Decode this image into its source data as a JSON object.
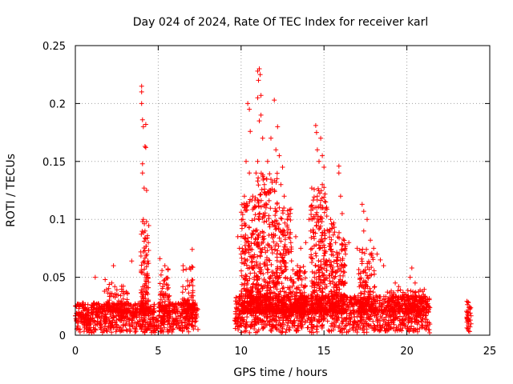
{
  "chart_data": {
    "type": "scatter",
    "title": "Day 024 of 2024, Rate Of TEC Index for receiver karl",
    "xlabel": "GPS time / hours",
    "ylabel": "ROTI / TECUs",
    "xlim": [
      0,
      25
    ],
    "ylim": [
      0,
      0.25
    ],
    "xticks": [
      0,
      5,
      10,
      15,
      20,
      25
    ],
    "yticks": [
      0,
      0.05,
      0.1,
      0.15,
      0.2,
      0.25
    ],
    "xtick_labels": [
      "0",
      "5",
      "10",
      "15",
      "20",
      "25"
    ],
    "ytick_labels": [
      "0",
      "0.05",
      "0.1",
      "0.15",
      "0.2",
      "0.25"
    ],
    "grid": true,
    "marker": "plus",
    "color": "#ff0000",
    "segments": [
      {
        "start": 0.0,
        "end": 7.4,
        "baseline_max": 0.026
      },
      {
        "start": 9.6,
        "end": 21.4,
        "baseline_max": 0.032
      },
      {
        "start": 23.6,
        "end": 23.9,
        "baseline_max": 0.028
      }
    ],
    "highlights": [
      {
        "x": 4.0,
        "y": 0.215
      },
      {
        "x": 4.0,
        "y": 0.21
      },
      {
        "x": 4.0,
        "y": 0.2
      },
      {
        "x": 4.05,
        "y": 0.186
      },
      {
        "x": 4.1,
        "y": 0.18
      },
      {
        "x": 4.25,
        "y": 0.182
      },
      {
        "x": 4.2,
        "y": 0.163
      },
      {
        "x": 4.25,
        "y": 0.162
      },
      {
        "x": 4.05,
        "y": 0.148
      },
      {
        "x": 4.05,
        "y": 0.14
      },
      {
        "x": 4.15,
        "y": 0.127
      },
      {
        "x": 4.3,
        "y": 0.125
      },
      {
        "x": 4.1,
        "y": 0.1
      },
      {
        "x": 4.2,
        "y": 0.09
      },
      {
        "x": 4.4,
        "y": 0.08
      },
      {
        "x": 5.1,
        "y": 0.066
      },
      {
        "x": 5.4,
        "y": 0.06
      },
      {
        "x": 6.5,
        "y": 0.06
      },
      {
        "x": 7.05,
        "y": 0.074
      },
      {
        "x": 6.9,
        "y": 0.058
      },
      {
        "x": 3.4,
        "y": 0.064
      },
      {
        "x": 2.3,
        "y": 0.06
      },
      {
        "x": 1.8,
        "y": 0.048
      },
      {
        "x": 1.2,
        "y": 0.05
      },
      {
        "x": 10.4,
        "y": 0.2
      },
      {
        "x": 10.5,
        "y": 0.195
      },
      {
        "x": 10.55,
        "y": 0.176
      },
      {
        "x": 10.3,
        "y": 0.15
      },
      {
        "x": 10.5,
        "y": 0.14
      },
      {
        "x": 10.2,
        "y": 0.12
      },
      {
        "x": 10.2,
        "y": 0.11
      },
      {
        "x": 11.0,
        "y": 0.228
      },
      {
        "x": 11.1,
        "y": 0.23
      },
      {
        "x": 11.05,
        "y": 0.22
      },
      {
        "x": 11.15,
        "y": 0.225
      },
      {
        "x": 11.0,
        "y": 0.205
      },
      {
        "x": 11.2,
        "y": 0.207
      },
      {
        "x": 11.2,
        "y": 0.19
      },
      {
        "x": 11.1,
        "y": 0.185
      },
      {
        "x": 11.3,
        "y": 0.17
      },
      {
        "x": 11.0,
        "y": 0.15
      },
      {
        "x": 11.4,
        "y": 0.13
      },
      {
        "x": 12.0,
        "y": 0.203
      },
      {
        "x": 11.8,
        "y": 0.17
      },
      {
        "x": 12.2,
        "y": 0.18
      },
      {
        "x": 12.1,
        "y": 0.16
      },
      {
        "x": 12.3,
        "y": 0.155
      },
      {
        "x": 12.5,
        "y": 0.145
      },
      {
        "x": 12.4,
        "y": 0.13
      },
      {
        "x": 12.6,
        "y": 0.12
      },
      {
        "x": 12.8,
        "y": 0.1
      },
      {
        "x": 12.3,
        "y": 0.11
      },
      {
        "x": 11.7,
        "y": 0.125
      },
      {
        "x": 13.3,
        "y": 0.085
      },
      {
        "x": 13.6,
        "y": 0.075
      },
      {
        "x": 14.5,
        "y": 0.181
      },
      {
        "x": 14.55,
        "y": 0.175
      },
      {
        "x": 14.8,
        "y": 0.17
      },
      {
        "x": 14.6,
        "y": 0.16
      },
      {
        "x": 14.7,
        "y": 0.15
      },
      {
        "x": 14.9,
        "y": 0.155
      },
      {
        "x": 15.0,
        "y": 0.145
      },
      {
        "x": 14.9,
        "y": 0.13
      },
      {
        "x": 14.6,
        "y": 0.12
      },
      {
        "x": 14.8,
        "y": 0.11
      },
      {
        "x": 15.1,
        "y": 0.115
      },
      {
        "x": 15.4,
        "y": 0.1
      },
      {
        "x": 15.9,
        "y": 0.146
      },
      {
        "x": 15.9,
        "y": 0.14
      },
      {
        "x": 16.0,
        "y": 0.12
      },
      {
        "x": 16.1,
        "y": 0.105
      },
      {
        "x": 14.1,
        "y": 0.1
      },
      {
        "x": 14.2,
        "y": 0.09
      },
      {
        "x": 13.9,
        "y": 0.08
      },
      {
        "x": 16.5,
        "y": 0.08
      },
      {
        "x": 17.0,
        "y": 0.075
      },
      {
        "x": 17.3,
        "y": 0.113
      },
      {
        "x": 17.4,
        "y": 0.107
      },
      {
        "x": 17.6,
        "y": 0.1
      },
      {
        "x": 17.4,
        "y": 0.09
      },
      {
        "x": 17.8,
        "y": 0.082
      },
      {
        "x": 18.0,
        "y": 0.075
      },
      {
        "x": 18.2,
        "y": 0.07
      },
      {
        "x": 18.4,
        "y": 0.065
      },
      {
        "x": 18.6,
        "y": 0.06
      },
      {
        "x": 19.3,
        "y": 0.045
      },
      {
        "x": 19.5,
        "y": 0.042
      },
      {
        "x": 20.3,
        "y": 0.058
      },
      {
        "x": 20.2,
        "y": 0.05
      },
      {
        "x": 20.5,
        "y": 0.045
      },
      {
        "x": 21.0,
        "y": 0.035
      },
      {
        "x": 9.8,
        "y": 0.085
      },
      {
        "x": 9.9,
        "y": 0.075
      },
      {
        "x": 10.0,
        "y": 0.07
      },
      {
        "x": 10.1,
        "y": 0.1
      },
      {
        "x": 10.7,
        "y": 0.12
      },
      {
        "x": 10.9,
        "y": 0.14
      },
      {
        "x": 11.6,
        "y": 0.15
      },
      {
        "x": 11.5,
        "y": 0.11
      },
      {
        "x": 12.6,
        "y": 0.09
      },
      {
        "x": 13.0,
        "y": 0.08
      },
      {
        "x": 15.7,
        "y": 0.08
      },
      {
        "x": 16.3,
        "y": 0.07
      },
      {
        "x": 13.4,
        "y": 0.06
      },
      {
        "x": 15.3,
        "y": 0.09
      }
    ],
    "bursts": [
      {
        "center": 4.2,
        "width": 0.5,
        "max": 0.1,
        "count": 140
      },
      {
        "center": 5.4,
        "width": 0.6,
        "max": 0.06,
        "count": 80
      },
      {
        "center": 6.8,
        "width": 0.7,
        "max": 0.06,
        "count": 80
      },
      {
        "center": 2.5,
        "width": 1.5,
        "max": 0.045,
        "count": 90
      },
      {
        "center": 10.5,
        "width": 1.0,
        "max": 0.12,
        "count": 260
      },
      {
        "center": 11.6,
        "width": 1.2,
        "max": 0.14,
        "count": 320
      },
      {
        "center": 12.6,
        "width": 0.9,
        "max": 0.11,
        "count": 200
      },
      {
        "center": 14.7,
        "width": 1.0,
        "max": 0.13,
        "count": 280
      },
      {
        "center": 15.8,
        "width": 1.0,
        "max": 0.1,
        "count": 220
      },
      {
        "center": 17.6,
        "width": 1.1,
        "max": 0.075,
        "count": 160
      },
      {
        "center": 13.5,
        "width": 0.8,
        "max": 0.06,
        "count": 120
      },
      {
        "center": 19.5,
        "width": 1.4,
        "max": 0.04,
        "count": 90
      },
      {
        "center": 20.6,
        "width": 0.9,
        "max": 0.04,
        "count": 80
      }
    ]
  }
}
